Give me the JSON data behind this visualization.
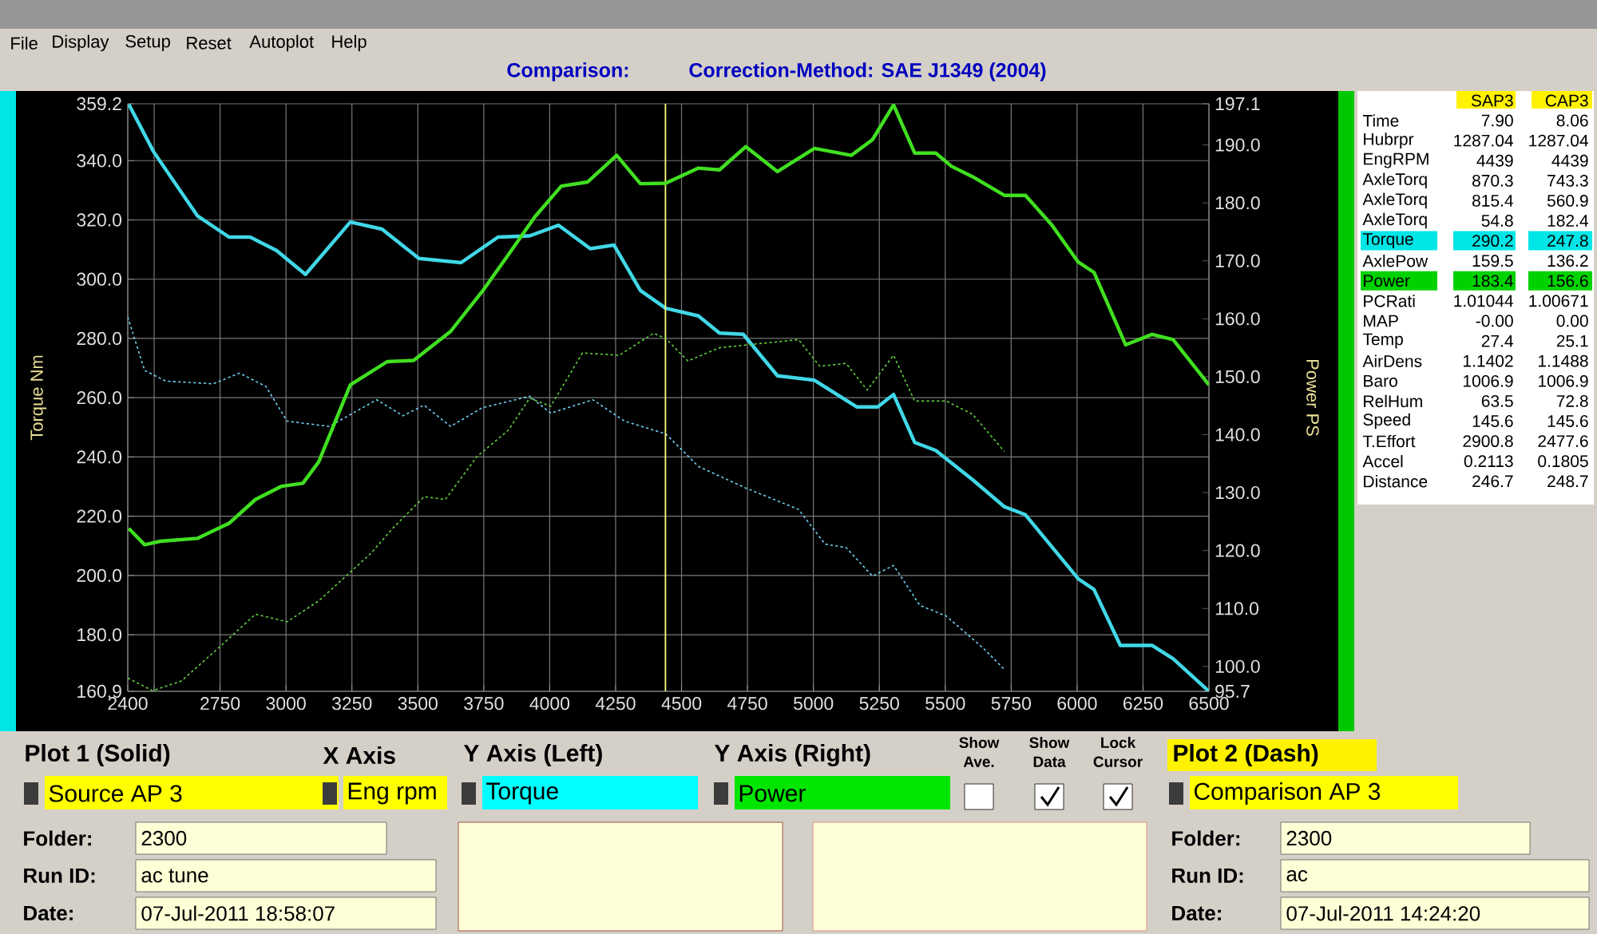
{
  "chart_data": {
    "type": "line",
    "title": "Comparison:",
    "subtitle": "Correction-Method: SAE J1349 (2004)",
    "ylabel": "Torque Nm",
    "y2label": "Power PS",
    "grid": true,
    "marker": "none",
    "xlim": [
      2400,
      6500
    ],
    "xticks": [
      2400,
      {
        "value": 2500,
        "label": null
      },
      2750,
      3000,
      3250,
      3500,
      3750,
      4000,
      4250,
      4500,
      4750,
      5000,
      5250,
      5500,
      5750,
      6000,
      6250,
      6500
    ],
    "ylim": [
      160.9,
      359.2
    ],
    "yticks": [
      {
        "value": 160.9,
        "label": "160.9"
      },
      {
        "value": 180,
        "label": "180.0"
      },
      {
        "value": 200,
        "label": "200.0"
      },
      {
        "value": 220,
        "label": "220.0"
      },
      {
        "value": 240,
        "label": "240.0"
      },
      {
        "value": 260,
        "label": "260.0"
      },
      {
        "value": 280,
        "label": "280.0"
      },
      {
        "value": 300,
        "label": "300.0"
      },
      {
        "value": 320,
        "label": "320.0"
      },
      {
        "value": 340,
        "label": "340.0"
      },
      {
        "value": 359.2,
        "label": "359.2"
      }
    ],
    "y2lim": [
      95.7,
      197.1
    ],
    "y2ticks": [
      {
        "value": 95.7,
        "label": "95.7"
      },
      {
        "value": 100,
        "label": "100.0"
      },
      {
        "value": 110,
        "label": "110.0"
      },
      {
        "value": 120,
        "label": "120.0"
      },
      {
        "value": 130,
        "label": "130.0"
      },
      {
        "value": 140,
        "label": "140.0"
      },
      {
        "value": 150,
        "label": "150.0"
      },
      {
        "value": 160,
        "label": "160.0"
      },
      {
        "value": 170,
        "label": "170.0"
      },
      {
        "value": 180,
        "label": "180.0"
      },
      {
        "value": 190,
        "label": "190.0"
      },
      {
        "value": 197.1,
        "label": "197.1"
      }
    ],
    "ref_lines": [
      {
        "axis": "x",
        "value": 4439,
        "color": "#ffff80"
      }
    ],
    "series": [
      {
        "color": "#40d8e8",
        "line_style": "solid",
        "x": [
          2404,
          2498,
          2664,
          2784,
          2864,
          2964,
          3074,
          3244,
          3364,
          3504,
          3664,
          3804,
          3924,
          4034,
          4154,
          4244,
          4344,
          4440,
          4564,
          4644,
          4734,
          4864,
          5004,
          5164,
          5244,
          5304,
          5384,
          5464,
          5604,
          5724,
          5804,
          6004,
          6064,
          6164,
          6284,
          6364,
          6500
        ],
        "values": [
          359,
          343,
          321.4,
          314.2,
          314.2,
          309.7,
          301.6,
          319.3,
          316.9,
          307,
          305.6,
          314.2,
          314.6,
          318.2,
          310.3,
          311.5,
          296.2,
          290.2,
          287.6,
          281.8,
          281.4,
          267.4,
          265.9,
          256.9,
          256.9,
          261.1,
          244.9,
          242.2,
          232.3,
          223.2,
          220.5,
          198.9,
          195.3,
          176.4,
          176.4,
          171.9,
          160.9
        ]
      },
      {
        "color": "#40e020",
        "line_style": "solid",
        "axis": "y2",
        "x": [
          2404,
          2464,
          2524,
          2664,
          2784,
          2884,
          2984,
          3064,
          3124,
          3244,
          3384,
          3484,
          3624,
          3744,
          3844,
          3944,
          4044,
          4144,
          4254,
          4344,
          4440,
          4564,
          4644,
          4744,
          4864,
          5004,
          5144,
          5224,
          5304,
          5384,
          5464,
          5524,
          5604,
          5724,
          5804,
          5904,
          6004,
          6064,
          6184,
          6284,
          6364,
          6500
        ],
        "values": [
          123.8,
          121.0,
          121.6,
          122.1,
          124.7,
          128.8,
          131.1,
          131.6,
          135.3,
          148.6,
          152.6,
          152.8,
          157.8,
          164.7,
          171.1,
          177.6,
          182.9,
          183.6,
          188.2,
          183.3,
          183.4,
          186.0,
          185.7,
          189.7,
          185.4,
          189.4,
          188.2,
          190.9,
          196.9,
          188.6,
          188.6,
          186.3,
          184.5,
          181.3,
          181.3,
          176.2,
          169.8,
          168.0,
          155.5,
          157.3,
          156.4,
          148.6
        ]
      },
      {
        "color": "#70d0f0",
        "line_style": "dashed",
        "x": [
          2400,
          2464,
          2544,
          2724,
          2824,
          2924,
          3004,
          3164,
          3344,
          3444,
          3524,
          3624,
          3744,
          3924,
          4004,
          4164,
          4284,
          4440,
          4564,
          4744,
          4944,
          5044,
          5124,
          5224,
          5304,
          5404,
          5504,
          5644,
          5724
        ],
        "values": [
          287.2,
          269.2,
          265.6,
          264.7,
          268.3,
          263.8,
          252.1,
          250.3,
          259.3,
          253.9,
          257.5,
          250.3,
          256.6,
          260.5,
          254.8,
          259.3,
          252.1,
          247.8,
          236.8,
          229.5,
          222.3,
          210.6,
          209.4,
          199.8,
          203.4,
          189.9,
          186.3,
          175.5,
          168.3
        ]
      },
      {
        "color": "#60d040",
        "line_style": "dashed",
        "axis": "y2",
        "x": [
          2400,
          2494,
          2604,
          2764,
          2884,
          3004,
          3124,
          3324,
          3404,
          3524,
          3604,
          3724,
          3844,
          3924,
          4004,
          4124,
          4264,
          4394,
          4440,
          4524,
          4644,
          4944,
          5024,
          5124,
          5204,
          5304,
          5384,
          5504,
          5604,
          5724
        ],
        "values": [
          98.0,
          95.8,
          97.5,
          104.0,
          109.0,
          107.7,
          111.3,
          119.6,
          123.8,
          129.3,
          128.8,
          136.2,
          140.8,
          146.3,
          144.9,
          154.1,
          153.7,
          157.5,
          156.6,
          152.7,
          155.0,
          156.4,
          151.8,
          152.3,
          147.7,
          153.7,
          145.8,
          145.8,
          143.5,
          137.1
        ]
      }
    ],
    "annotations": [
      "File",
      "Display",
      "Setup",
      "Reset",
      "Autoplot",
      "Help",
      "SAP3",
      "CAP3",
      "Time",
      "7.90",
      "8.06",
      "Hubrpr",
      "1287.04",
      "1287.04",
      "EngRPM",
      "4439",
      "4439",
      "AxleTorq",
      "870.3",
      "743.3",
      "AxleTorq",
      "815.4",
      "560.9",
      "AxleTorq",
      "54.8",
      "182.4",
      "Torque",
      "290.2",
      "247.8",
      "AxlePow",
      "159.5",
      "136.2",
      "Power",
      "183.4",
      "156.6",
      "PCRati",
      "1.01044",
      "1.00671",
      "MAP",
      "-0.00",
      "0.00",
      "Temp",
      "27.4",
      "25.1",
      "AirDens",
      "1.1402",
      "1.1488",
      "Baro",
      "1006.9",
      "1006.9",
      "RelHum",
      "63.5",
      "72.8",
      "Speed",
      "145.6",
      "145.6",
      "T.Effort",
      "2900.8",
      "2477.6",
      "Accel",
      "0.2113",
      "0.1805",
      "Distance",
      "246.7",
      "248.7",
      "Plot 1 (Solid)",
      "X Axis",
      "Y Axis (Left)",
      "Y Axis (Right)",
      "Show Ave.",
      "Show Data",
      "Lock Cursor",
      "Plot 2 (Dash)",
      "Source AP 3",
      "Eng rpm",
      "Torque",
      "Power",
      "Comparison AP 3",
      "Folder:",
      "2300",
      "Run ID:",
      "ac tune",
      "Date:",
      "07-Jul-2011  18:58:07",
      "Folder:",
      "2300",
      "Run ID:",
      "ac",
      "Date:",
      "07-Jul-2011  14:24:20"
    ]
  }
}
